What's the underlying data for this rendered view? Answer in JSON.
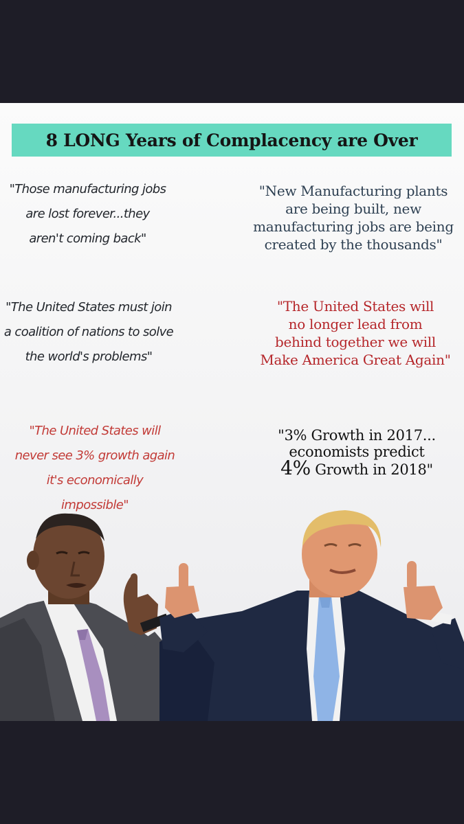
{
  "banner": {
    "title": "8 LONG Years of Complacency are Over"
  },
  "quotes": {
    "left": [
      {
        "text": "\"Those manufacturing jobs\nare lost forever...they\naren't coming back\"",
        "color": "#22262c"
      },
      {
        "text": "\"The United States must join\na coalition of nations to solve\nthe world's problems\"",
        "color": "#22262c"
      },
      {
        "text": "\"The United States will\nnever see 3% growth again\nit's economically impossible\"",
        "color": "#c23a36"
      }
    ],
    "right": [
      {
        "text": "\"New Manufacturing plants\nare being built, new\nmanufacturing jobs are being\ncreated by the thousands\"",
        "color": "#2e4052"
      },
      {
        "text": "\"The United States will\nno longer lead from\nbehind together we will\nMake America Great Again\"",
        "color": "#b5262a"
      },
      {
        "line1": "\"3% Growth in 2017...",
        "line2": "economists predict",
        "line3_big": "4%",
        "line3_rest": " Growth in 2018\"",
        "color": "#111111"
      }
    ]
  },
  "images": {
    "left_person": "man-in-grey-suit-pointing-finger",
    "right_person": "man-in-navy-suit-thumbs-up"
  },
  "colors": {
    "banner": "#66d9c0",
    "frame": "#1e1d27",
    "accent_red": "#b5262a"
  }
}
